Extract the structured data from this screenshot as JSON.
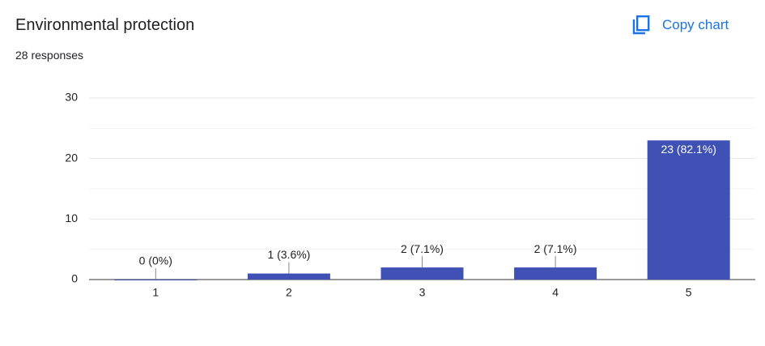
{
  "header": {
    "title": "Environmental protection",
    "subtitle": "28 responses",
    "button": "Copy chart"
  },
  "chart_data": {
    "type": "bar",
    "categories": [
      "1",
      "2",
      "3",
      "4",
      "5"
    ],
    "values": [
      0,
      1,
      2,
      2,
      23
    ],
    "value_labels": [
      "0 (0%)",
      "1 (3.6%)",
      "2 (7.1%)",
      "2 (7.1%)",
      "23 (82.1%)"
    ],
    "color": "#3f51b5",
    "ylim": [
      0,
      30
    ],
    "yticks": [
      0,
      10,
      20,
      30
    ],
    "minor_yticks": [
      5,
      15,
      25
    ],
    "grid": true
  }
}
